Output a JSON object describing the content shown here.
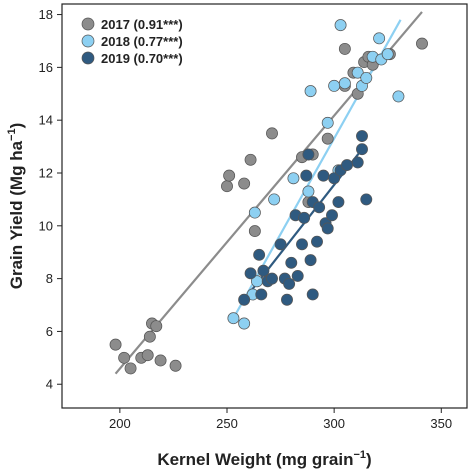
{
  "chart_data": {
    "type": "scatter",
    "xlabel": "Kernel Weight (mg grain",
    "xlabel_sup": "−1",
    "xlabel_end": ")",
    "ylabel": "Grain Yield (Mg ha",
    "ylabel_sup": "−1",
    "ylabel_end": ")",
    "xlim": [
      173,
      362
    ],
    "ylim": [
      3.1,
      18.4
    ],
    "xticks": [
      200,
      250,
      300,
      350
    ],
    "yticks": [
      4,
      6,
      8,
      10,
      12,
      14,
      16,
      18
    ],
    "grid": false,
    "legend_position": "top-left",
    "series": [
      {
        "name": "2017 (0.91***)",
        "color": "#8c8c8c",
        "line_color": "#8c8c8c",
        "fit": [
          [
            198,
            4.4
          ],
          [
            341,
            18.1
          ]
        ],
        "points": [
          [
            198,
            5.5
          ],
          [
            202,
            5.0
          ],
          [
            205,
            4.6
          ],
          [
            210,
            5.0
          ],
          [
            213,
            5.1
          ],
          [
            214,
            5.8
          ],
          [
            215,
            6.3
          ],
          [
            217,
            6.2
          ],
          [
            219,
            4.9
          ],
          [
            226,
            4.7
          ],
          [
            250,
            11.5
          ],
          [
            251,
            11.9
          ],
          [
            258,
            11.6
          ],
          [
            261,
            12.5
          ],
          [
            263,
            9.8
          ],
          [
            271,
            13.5
          ],
          [
            285,
            12.6
          ],
          [
            288,
            10.9
          ],
          [
            290,
            12.7
          ],
          [
            297,
            13.3
          ],
          [
            305,
            15.3
          ],
          [
            305,
            16.7
          ],
          [
            309,
            15.8
          ],
          [
            311,
            15.0
          ],
          [
            314,
            16.2
          ],
          [
            316,
            16.4
          ],
          [
            318,
            16.1
          ],
          [
            326,
            16.5
          ],
          [
            341,
            16.9
          ]
        ]
      },
      {
        "name": "2018 (0.77***)",
        "color": "#8dd0f2",
        "line_color": "#8dd0f2",
        "fit": [
          [
            253,
            6.5
          ],
          [
            331,
            17.8
          ]
        ],
        "points": [
          [
            253,
            6.5
          ],
          [
            258,
            6.3
          ],
          [
            262,
            7.4
          ],
          [
            263,
            10.5
          ],
          [
            264,
            7.9
          ],
          [
            272,
            11.0
          ],
          [
            281,
            11.8
          ],
          [
            288,
            11.3
          ],
          [
            289,
            15.1
          ],
          [
            297,
            13.9
          ],
          [
            300,
            15.3
          ],
          [
            302,
            12.1
          ],
          [
            303,
            17.6
          ],
          [
            305,
            15.4
          ],
          [
            311,
            15.8
          ],
          [
            313,
            15.3
          ],
          [
            315,
            15.6
          ],
          [
            318,
            16.4
          ],
          [
            321,
            17.1
          ],
          [
            322,
            16.3
          ],
          [
            325,
            16.5
          ],
          [
            330,
            14.9
          ]
        ]
      },
      {
        "name": "2019 (0.70***)",
        "color": "#2f5a80",
        "line_color": "#2f5a80",
        "fit": [
          [
            258,
            7.2
          ],
          [
            314,
            13.0
          ]
        ],
        "points": [
          [
            258,
            7.2
          ],
          [
            261,
            8.2
          ],
          [
            265,
            8.9
          ],
          [
            266,
            7.4
          ],
          [
            267,
            8.3
          ],
          [
            269,
            7.9
          ],
          [
            271,
            8.0
          ],
          [
            275,
            9.3
          ],
          [
            277,
            8.0
          ],
          [
            278,
            7.2
          ],
          [
            279,
            7.8
          ],
          [
            280,
            8.6
          ],
          [
            282,
            10.4
          ],
          [
            283,
            8.1
          ],
          [
            285,
            9.3
          ],
          [
            286,
            10.3
          ],
          [
            287,
            11.9
          ],
          [
            288,
            12.7
          ],
          [
            289,
            8.7
          ],
          [
            290,
            7.4
          ],
          [
            290,
            10.9
          ],
          [
            292,
            9.4
          ],
          [
            293,
            10.7
          ],
          [
            295,
            11.9
          ],
          [
            296,
            10.1
          ],
          [
            297,
            9.9
          ],
          [
            299,
            10.4
          ],
          [
            300,
            11.8
          ],
          [
            302,
            10.9
          ],
          [
            303,
            12.1
          ],
          [
            306,
            12.3
          ],
          [
            311,
            12.4
          ],
          [
            313,
            13.4
          ],
          [
            313,
            12.9
          ],
          [
            315,
            11.0
          ]
        ]
      }
    ]
  }
}
